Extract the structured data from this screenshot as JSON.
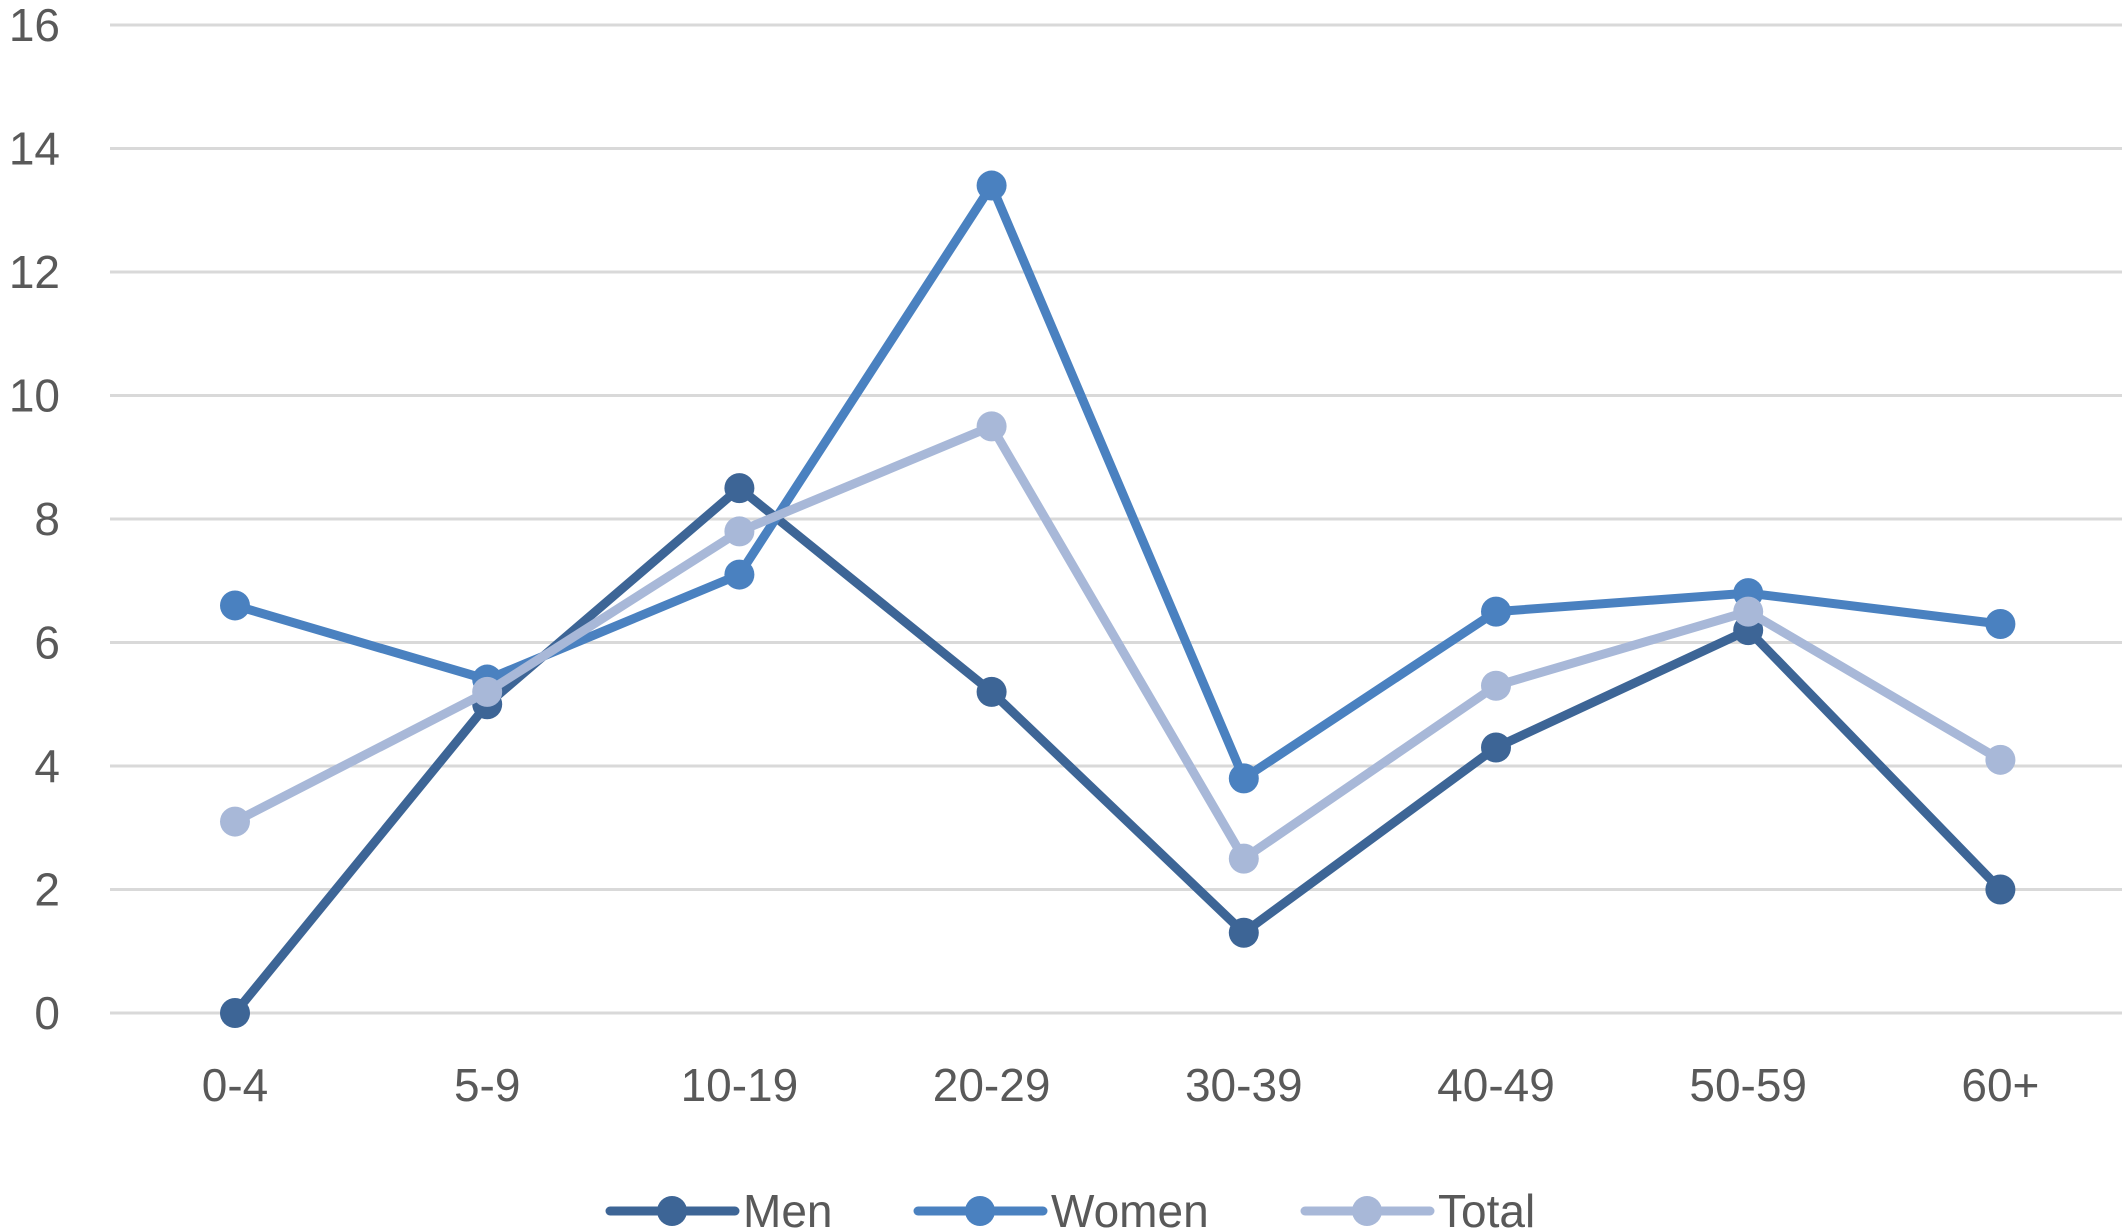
{
  "chart_data": {
    "type": "line",
    "title": "",
    "xlabel": "",
    "ylabel": "",
    "categories": [
      "0-4",
      "5-9",
      "10-19",
      "20-29",
      "30-39",
      "40-49",
      "50-59",
      "60+"
    ],
    "ylim": [
      0,
      16
    ],
    "yticks": [
      "0",
      "2",
      "4",
      "6",
      "8",
      "10",
      "12",
      "14",
      "16"
    ],
    "grid": true,
    "legend_position": "bottom",
    "series": [
      {
        "name": "Men",
        "values": [
          0.0,
          5.0,
          8.5,
          5.2,
          1.3,
          4.3,
          6.2,
          2.0
        ],
        "color": "#3d6596"
      },
      {
        "name": "Women",
        "values": [
          6.6,
          5.4,
          7.1,
          13.4,
          3.8,
          6.5,
          6.8,
          6.3
        ],
        "color": "#4a81c0"
      },
      {
        "name": "Total",
        "values": [
          3.1,
          5.2,
          7.8,
          9.5,
          2.5,
          5.3,
          6.5,
          4.1
        ],
        "color": "#a8b8d8"
      }
    ]
  }
}
